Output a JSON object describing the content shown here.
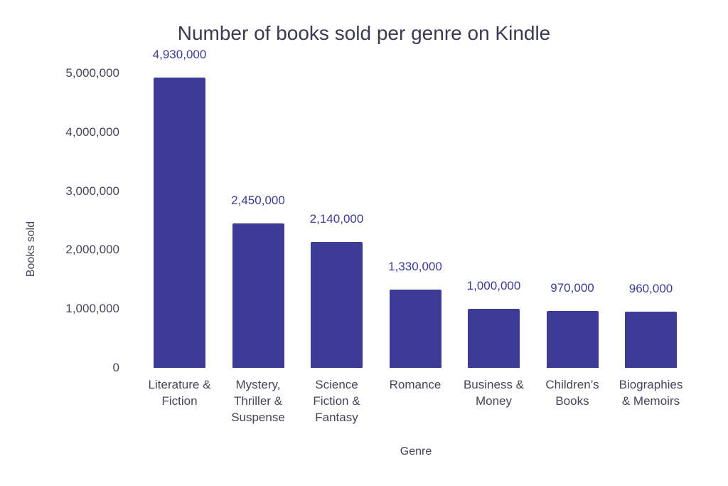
{
  "chart_data": {
    "type": "bar",
    "title": "Number of books sold per genre on Kindle",
    "xlabel": "Genre",
    "ylabel": "Books sold",
    "ylim": [
      0,
      5000000
    ],
    "yticks": [
      "0",
      "1,000,000",
      "2,000,000",
      "3,000,000",
      "4,000,000",
      "5,000,000"
    ],
    "grid": false,
    "legend": null,
    "bar_color": "#3c3c96",
    "categories": [
      "Literature &\nFiction",
      "Mystery,\nThriller &\nSuspense",
      "Science\nFiction &\nFantasy",
      "Romance",
      "Business &\nMoney",
      "Children’s\nBooks",
      "Biographies\n& Memoirs"
    ],
    "values": [
      4930000,
      2450000,
      2140000,
      1330000,
      1000000,
      970000,
      960000
    ],
    "value_labels": [
      "4,930,000",
      "2,450,000",
      "2,140,000",
      "1,330,000",
      "1,000,000",
      "970,000",
      "960,000"
    ]
  }
}
